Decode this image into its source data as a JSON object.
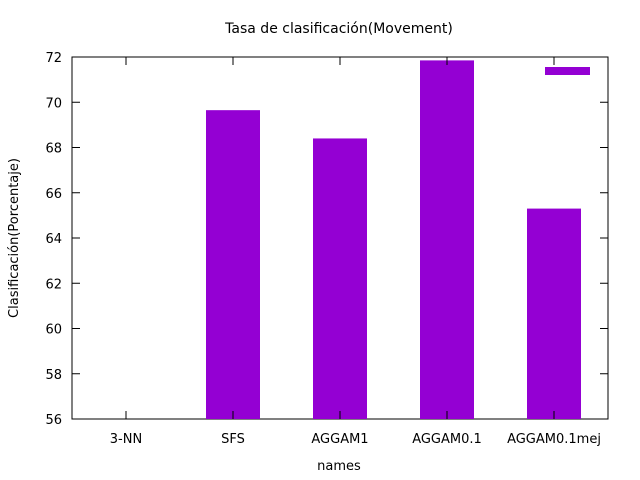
{
  "chart_data": {
    "type": "bar",
    "title": "Tasa de clasificación(Movement)",
    "xlabel": "names",
    "ylabel": "Clasificación(Porcentaje)",
    "categories": [
      "3-NN",
      "SFS",
      "AGGAM1",
      "AGGAM0.1",
      "AGGAM0.1mej"
    ],
    "series": [
      {
        "values": [
          null,
          69.65,
          68.4,
          71.85,
          65.3
        ]
      }
    ],
    "ylim": [
      56,
      72
    ],
    "yticks": [
      56,
      58,
      60,
      62,
      64,
      66,
      68,
      70,
      72
    ],
    "grid": false,
    "legend": {
      "position": "top-right",
      "swatch_color": "#9400d3"
    },
    "colors": {
      "bar": "#9400d3",
      "axis": "#000000"
    }
  }
}
